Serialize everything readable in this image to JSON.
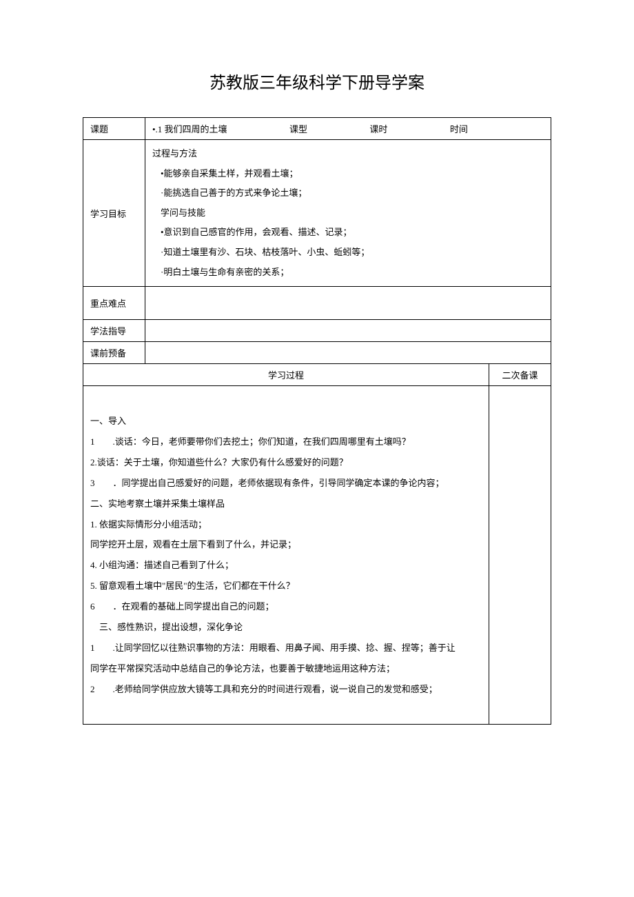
{
  "title": "苏教版三年级科学下册导学案",
  "table": {
    "row1": {
      "label": "课题",
      "topic": "•.1 我们四周的土壤",
      "type_label": "课型",
      "period_label": "课时",
      "time_label": "时间"
    },
    "goals": {
      "label": "学习目标",
      "lines": {
        "l1": "过程与方法",
        "l2": "•能够亲自采集土样，并观看土壤；",
        "l3": "·能挑选自己善于的方式来争论土壤；",
        "l4": "学问与技能",
        "l5": "•意识到自己感官的作用，会观看、描述、记录；",
        "l6": "·知道土壤里有沙、石块、枯枝落叶、小虫、蚯蚓等；",
        "l7": "·明白土壤与生命有亲密的关系；"
      }
    },
    "difficulty_label": "重点难点",
    "method_label": "学法指导",
    "prep_label": "课前预备",
    "process_label": "学习过程",
    "secondary_label": "二次备课",
    "process": {
      "s1": "一、导入",
      "s2a": "1",
      "s2b": ".谈话：今日，老师要带你们去挖土；你们知道，在我们四周哪里有土壤吗？",
      "s3": "2.谈话：关于土壤，你知道些什么？大家仍有什么感爱好的问题？",
      "s4a": "3",
      "s4b": "．同学提出自己感爱好的问题，老师依据现有条件，引导同学确定本课的争论内容；",
      "s5": "二、实地考察土壤并采集土壤样品",
      "s6": "1. 依据实际情形分小组活动；",
      "s7": "同学挖开土层，观看在土层下看到了什么，并记录；",
      "s8": "4. 小组沟通：描述自己看到了什么；",
      "s9": "5. 留意观看土壤中\"居民\"的生活，它们都在干什么？",
      "s10a": "6",
      "s10b": "．在观看的基础上同学提出自己的问题；",
      "s11": "　三、感性熟识，提出设想，深化争论",
      "s12a": "1",
      "s12b": ".让同学回忆以往熟识事物的方法：用眼看、用鼻子闻、用手摸、捻、握、捏等；善于让",
      "s13": "同学在平常探究活动中总结自己的争论方法，也要善于敏捷地运用这种方法；",
      "s14a": "2",
      "s14b": ".老师给同学供应放大镜等工具和充分的时间进行观看，说一说自己的发觉和感受；"
    }
  }
}
